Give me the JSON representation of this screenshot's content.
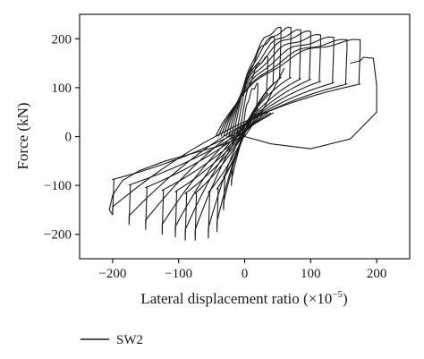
{
  "chart_data": {
    "type": "line",
    "xlabel": "Lateral displacement ratio (×10",
    "xlabel_exponent": "−5",
    "xlabel_suffix": ")",
    "ylabel": "Force (kN)",
    "xlim": [
      -250,
      250
    ],
    "ylim": [
      -250,
      250
    ],
    "x_ticks": [
      -200,
      -100,
      0,
      100,
      200
    ],
    "x_tick_labels": [
      "−200",
      "−100",
      "0",
      "100",
      "200"
    ],
    "y_ticks": [
      -200,
      -100,
      0,
      100,
      200
    ],
    "y_tick_labels": [
      "−200",
      "−100",
      "0",
      "100",
      "200"
    ],
    "grid": false,
    "legend": {
      "position": "bottom-left",
      "entries": [
        "SW2"
      ]
    },
    "line_color": "#1a1a1a",
    "loops": [
      {
        "amp_pos": 20,
        "peak_pos": 105,
        "amp_neg": -20,
        "peak_neg": -100,
        "residual": 4
      },
      {
        "amp_pos": 35,
        "peak_pos": 160,
        "amp_neg": -32,
        "peak_neg": -150,
        "residual": 8
      },
      {
        "amp_pos": 45,
        "peak_pos": 200,
        "amp_neg": -42,
        "peak_neg": -195,
        "residual": 12
      },
      {
        "amp_pos": 55,
        "peak_pos": 220,
        "amp_neg": -55,
        "peak_neg": -208,
        "residual": 16
      },
      {
        "amp_pos": 70,
        "peak_pos": 220,
        "amp_neg": -75,
        "peak_neg": -212,
        "residual": 20
      },
      {
        "amp_pos": 85,
        "peak_pos": 215,
        "amp_neg": -90,
        "peak_neg": -212,
        "residual": 24
      },
      {
        "amp_pos": 100,
        "peak_pos": 212,
        "amp_neg": -105,
        "peak_neg": -205,
        "residual": 28
      },
      {
        "amp_pos": 115,
        "peak_pos": 205,
        "amp_neg": -125,
        "peak_neg": -200,
        "residual": 32
      },
      {
        "amp_pos": 135,
        "peak_pos": 200,
        "amp_neg": -150,
        "peak_neg": -190,
        "residual": 36
      },
      {
        "amp_pos": 155,
        "peak_pos": 195,
        "amp_neg": -175,
        "peak_neg": -180,
        "residual": 40
      },
      {
        "amp_pos": 175,
        "peak_pos": 195,
        "amp_neg": -200,
        "peak_neg": -160,
        "residual": 44
      }
    ],
    "final_branch": [
      [
        0,
        0
      ],
      [
        40,
        -15
      ],
      [
        100,
        -25
      ],
      [
        160,
        -5
      ],
      [
        200,
        50
      ],
      [
        200,
        105
      ],
      [
        195,
        160
      ],
      [
        180,
        162
      ],
      [
        175,
        155
      ],
      [
        160,
        150
      ]
    ]
  }
}
